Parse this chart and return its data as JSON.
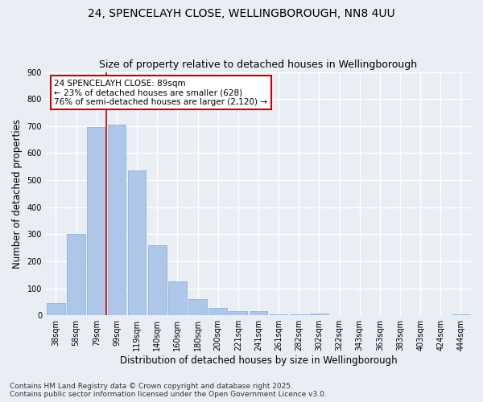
{
  "title_line1": "24, SPENCELAYH CLOSE, WELLINGBOROUGH, NN8 4UU",
  "title_line2": "Size of property relative to detached houses in Wellingborough",
  "xlabel": "Distribution of detached houses by size in Wellingborough",
  "ylabel": "Number of detached properties",
  "categories": [
    "38sqm",
    "58sqm",
    "79sqm",
    "99sqm",
    "119sqm",
    "140sqm",
    "160sqm",
    "180sqm",
    "200sqm",
    "221sqm",
    "241sqm",
    "261sqm",
    "282sqm",
    "302sqm",
    "322sqm",
    "343sqm",
    "363sqm",
    "383sqm",
    "403sqm",
    "424sqm",
    "444sqm"
  ],
  "values": [
    45,
    300,
    695,
    705,
    535,
    260,
    125,
    60,
    28,
    15,
    15,
    5,
    5,
    8,
    0,
    0,
    0,
    0,
    0,
    0,
    3
  ],
  "bar_color": "#aec6e8",
  "bar_edge_color": "#7bafd4",
  "background_color": "#e8eef4",
  "grid_color": "#ffffff",
  "vline_color": "#cc0000",
  "vline_x_index": 2.5,
  "annotation_text": "24 SPENCELAYH CLOSE: 89sqm\n← 23% of detached houses are smaller (628)\n76% of semi-detached houses are larger (2,120) →",
  "annotation_box_color": "#ffffff",
  "annotation_box_edge_color": "#cc0000",
  "ylim": [
    0,
    900
  ],
  "yticks": [
    0,
    100,
    200,
    300,
    400,
    500,
    600,
    700,
    800,
    900
  ],
  "footnote": "Contains HM Land Registry data © Crown copyright and database right 2025.\nContains public sector information licensed under the Open Government Licence v3.0.",
  "title_fontsize": 10,
  "subtitle_fontsize": 9,
  "axis_label_fontsize": 8.5,
  "tick_fontsize": 7,
  "annotation_fontsize": 7.5,
  "footnote_fontsize": 6.5
}
